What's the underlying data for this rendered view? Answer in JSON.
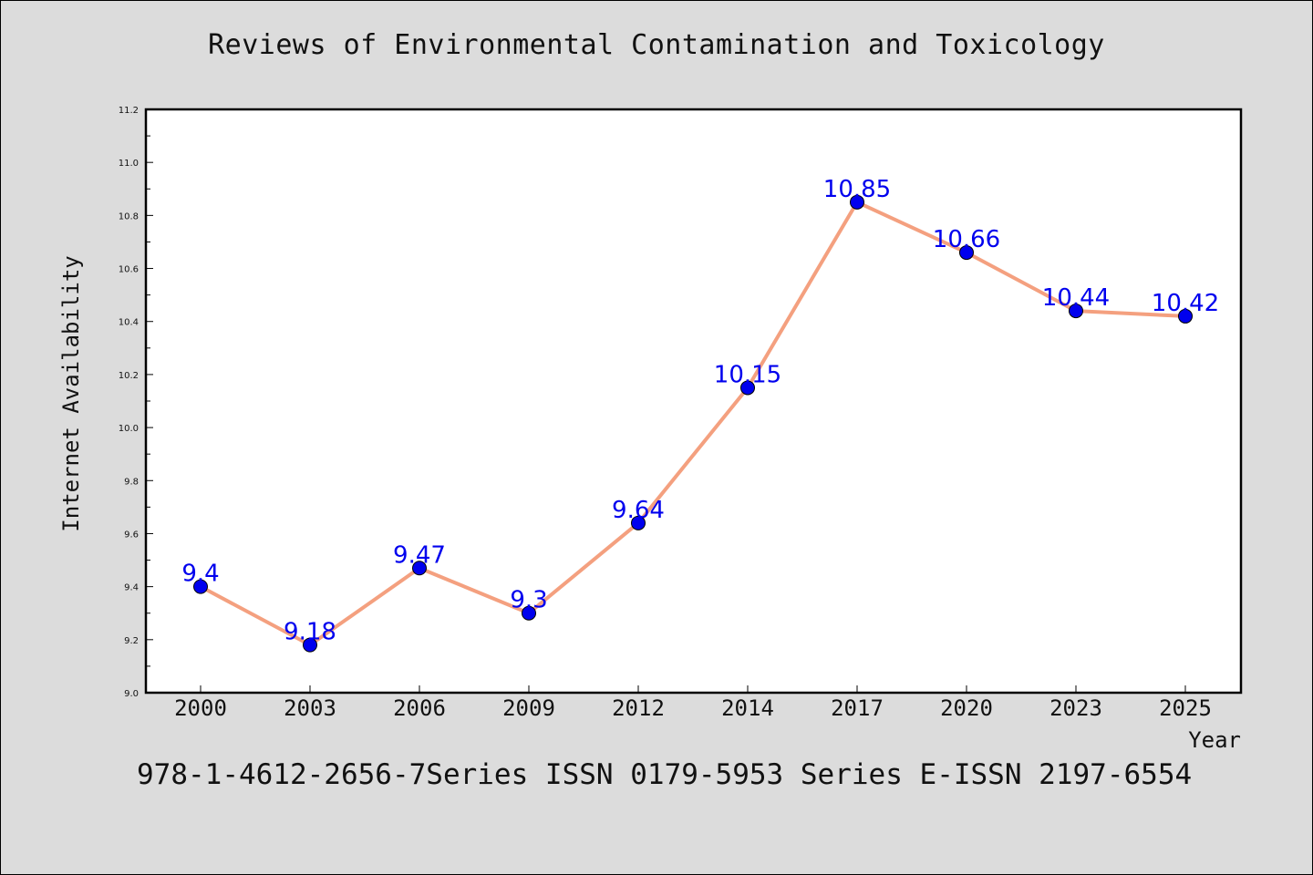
{
  "chart_data": {
    "type": "line",
    "title": "Reviews of Environmental Contamination and Toxicology",
    "xlabel": "Year",
    "ylabel": "Internet Availability",
    "categories": [
      "2000",
      "2003",
      "2006",
      "2009",
      "2012",
      "2014",
      "2017",
      "2020",
      "2023",
      "2025"
    ],
    "values": [
      9.4,
      9.18,
      9.47,
      9.3,
      9.64,
      10.15,
      10.85,
      10.66,
      10.44,
      10.42
    ],
    "data_labels": [
      "9.4",
      "9.18",
      "9.47",
      "9.3",
      "9.64",
      "10.15",
      "10.85",
      "10.66",
      "10.44",
      "10.42"
    ],
    "ylim": [
      9.0,
      11.2
    ],
    "yticks": [
      "9.0",
      "9.2",
      "9.4",
      "9.6",
      "9.8",
      "10.0",
      "10.2",
      "10.4",
      "10.6",
      "10.8",
      "11.0",
      "11.2"
    ],
    "grid": false,
    "line_color": "#f4a07f",
    "marker_color": "#0000ee",
    "label_color": "#0000ee"
  },
  "caption": "978-1-4612-2656-7Series ISSN 0179-5953 Series E-ISSN 2197-6554"
}
